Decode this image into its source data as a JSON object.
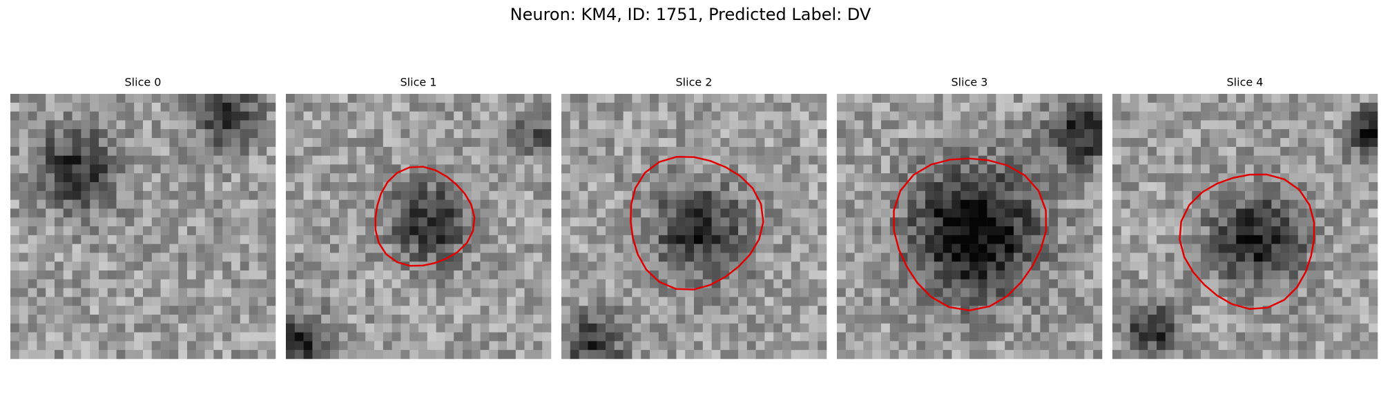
{
  "title": "Neuron: KM4, ID: 1751, Predicted Label: DV",
  "panels": [
    {
      "title": "Slice 0"
    },
    {
      "title": "Slice 1"
    },
    {
      "title": "Slice 2"
    },
    {
      "title": "Slice 3"
    },
    {
      "title": "Slice 4"
    }
  ]
}
